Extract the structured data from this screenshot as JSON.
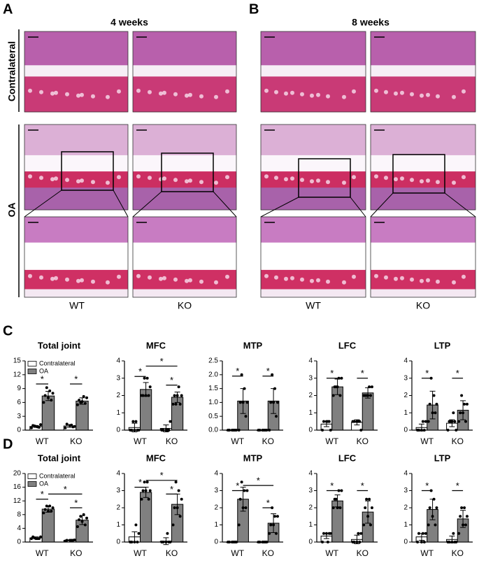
{
  "figure": {
    "panel_labels": [
      "A",
      "B",
      "C",
      "D"
    ],
    "columns": [
      "4 weeks",
      "8 weeks"
    ],
    "rows": [
      "Contralateral",
      "OA"
    ],
    "genotypes": [
      "WT",
      "KO",
      "WT",
      "KO"
    ]
  },
  "chart_data": [
    {
      "type": "bar",
      "title": "Total joint",
      "categories": [
        "WT",
        "KO"
      ],
      "ylim": [
        0,
        15
      ],
      "yticks": [
        0,
        3,
        6,
        9,
        12,
        15
      ],
      "legend": "upper left",
      "series": [
        {
          "name": "Contralateral",
          "color": "#ffffff",
          "values": [
            0.8,
            0.9
          ],
          "errors": [
            0.2,
            0.3
          ],
          "points": [
            [
              0.5,
              0.6,
              0.8,
              1,
              1.2,
              0.7,
              0.9
            ],
            [
              0.5,
              0.7,
              1,
              1.3,
              0.8,
              1.1
            ]
          ]
        },
        {
          "name": "OA",
          "color": "#808080",
          "values": [
            7.4,
            6.3
          ],
          "errors": [
            1.0,
            0.7
          ],
          "points": [
            [
              6,
              6.5,
              7,
              7.5,
              8,
              8.5,
              9.2
            ],
            [
              5.5,
              5.8,
              6.2,
              6.5,
              7,
              7.3,
              6
            ]
          ]
        }
      ],
      "brackets": [
        {
          "from": 0,
          "to": 1,
          "y": 10,
          "label": "*"
        },
        {
          "from": 2,
          "to": 3,
          "y": 10,
          "label": "*"
        }
      ]
    },
    {
      "type": "bar",
      "title": "MFC",
      "categories": [
        "WT",
        "KO"
      ],
      "ylim": [
        0,
        4
      ],
      "yticks": [
        0,
        1,
        2,
        3,
        4
      ],
      "series": [
        {
          "color": "#ffffff",
          "values": [
            0.15,
            0.1
          ],
          "errors": [
            0.25,
            0.2
          ],
          "points": [
            [
              0,
              0,
              0,
              0,
              0,
              0.5,
              0.5
            ],
            [
              0,
              0,
              0,
              0,
              0.5,
              0
            ]
          ]
        },
        {
          "color": "#808080",
          "values": [
            2.35,
            1.9
          ],
          "errors": [
            0.4,
            0.3
          ],
          "points": [
            [
              2,
              2,
              2,
              2,
              2.5,
              3,
              3
            ],
            [
              1.5,
              1.5,
              2,
              2,
              2,
              2.5,
              1.5
            ]
          ]
        }
      ],
      "brackets": [
        {
          "from": 0,
          "to": 1,
          "y": 3.1,
          "label": "*"
        },
        {
          "from": 2,
          "to": 3,
          "y": 2.6,
          "label": "*"
        },
        {
          "from": 1,
          "to": 3,
          "y": 3.7,
          "label": "*"
        }
      ]
    },
    {
      "type": "bar",
      "title": "MTP",
      "categories": [
        "WT",
        "KO"
      ],
      "ylim": [
        0,
        2.5
      ],
      "yticks": [
        {
          "value": 0,
          "label": "0.0"
        },
        0.5,
        {
          "value": 1,
          "label": "1.0"
        },
        1.5,
        {
          "value": 2,
          "label": "2.0"
        },
        2.5
      ],
      "series": [
        {
          "color": "#ffffff",
          "values": [
            0,
            0
          ],
          "errors": [
            0,
            0
          ],
          "points": [
            [
              0,
              0,
              0,
              0,
              0,
              0
            ],
            [
              0,
              0,
              0,
              0,
              0,
              0
            ]
          ]
        },
        {
          "color": "#808080",
          "values": [
            1.05,
            1.05
          ],
          "errors": [
            0.45,
            0.45
          ],
          "points": [
            [
              0,
              0.5,
              1,
              1,
              1,
              1.5,
              2
            ],
            [
              0,
              0.5,
              1,
              1,
              1,
              1.5,
              2
            ]
          ]
        }
      ],
      "brackets": [
        {
          "from": 0,
          "to": 1,
          "y": 1.95,
          "label": "*"
        },
        {
          "from": 2,
          "to": 3,
          "y": 1.95,
          "label": "*"
        }
      ]
    },
    {
      "type": "bar",
      "title": "LFC",
      "categories": [
        "WT",
        "KO"
      ],
      "ylim": [
        0,
        4
      ],
      "yticks": [
        0,
        1,
        2,
        3,
        4
      ],
      "series": [
        {
          "color": "#ffffff",
          "values": [
            0.35,
            0.45
          ],
          "errors": [
            0.15,
            0.15
          ],
          "points": [
            [
              0,
              0.5,
              0.5,
              0.5,
              0,
              0.5
            ],
            [
              0.5,
              0.5,
              0.5,
              0.5,
              0,
              0.5
            ]
          ]
        },
        {
          "color": "#808080",
          "values": [
            2.5,
            2.15
          ],
          "errors": [
            0.45,
            0.3
          ],
          "points": [
            [
              2,
              2,
              2.5,
              2.5,
              3,
              3,
              2.5
            ],
            [
              2,
              2,
              2,
              2,
              2.5,
              2.5,
              2
            ]
          ]
        }
      ],
      "brackets": [
        {
          "from": 0,
          "to": 1,
          "y": 3,
          "label": "*"
        },
        {
          "from": 2,
          "to": 3,
          "y": 3,
          "label": "*"
        }
      ]
    },
    {
      "type": "bar",
      "title": "LTP",
      "categories": [
        "WT",
        "KO"
      ],
      "ylim": [
        0,
        4
      ],
      "yticks": [
        0,
        1,
        2,
        3,
        4
      ],
      "series": [
        {
          "color": "#ffffff",
          "values": [
            0.15,
            0.4
          ],
          "errors": [
            0.2,
            0.2
          ],
          "points": [
            [
              0,
              0,
              0,
              0,
              0.5,
              0.5
            ],
            [
              0,
              0.5,
              0.5,
              0.5,
              0,
              1,
              0.5
            ]
          ]
        },
        {
          "color": "#808080",
          "values": [
            1.45,
            1.15
          ],
          "errors": [
            0.8,
            0.55
          ],
          "points": [
            [
              0.5,
              1,
              1,
              1.5,
              1.5,
              2,
              3
            ],
            [
              0.5,
              0.5,
              1,
              1,
              1.5,
              1.5,
              2
            ]
          ]
        }
      ],
      "brackets": [
        {
          "from": 0,
          "to": 1,
          "y": 3,
          "label": "*"
        },
        {
          "from": 2,
          "to": 3,
          "y": 3,
          "label": "*"
        }
      ]
    },
    {
      "type": "bar",
      "title": "Total joint",
      "categories": [
        "WT",
        "KO"
      ],
      "ylim": [
        0,
        20
      ],
      "yticks": [
        0,
        4,
        8,
        12,
        16,
        20
      ],
      "legend": "upper left",
      "series": [
        {
          "name": "Contralateral",
          "color": "#ffffff",
          "values": [
            1.2,
            0.5
          ],
          "errors": [
            0.3,
            0.1
          ],
          "points": [
            [
              1,
              1,
              1,
              1.5,
              1.5,
              1,
              1.2
            ],
            [
              0.3,
              0.5,
              0.5,
              0.5,
              0.6,
              0.5
            ]
          ]
        },
        {
          "name": "OA",
          "color": "#808080",
          "values": [
            9.6,
            6.4
          ],
          "errors": [
            0.9,
            1.3
          ],
          "points": [
            [
              8.5,
              9,
              9,
              9.5,
              10,
              10.5,
              10.5
            ],
            [
              4.5,
              5,
              6,
              6.5,
              7,
              8,
              7.5
            ]
          ]
        }
      ],
      "brackets": [
        {
          "from": 0,
          "to": 1,
          "y": 12.5,
          "label": "*"
        },
        {
          "from": 2,
          "to": 3,
          "y": 10,
          "label": "*"
        },
        {
          "from": 1,
          "to": 3,
          "y": 14,
          "label": "*"
        }
      ]
    },
    {
      "type": "bar",
      "title": "MFC",
      "categories": [
        "WT",
        "KO"
      ],
      "ylim": [
        0,
        4
      ],
      "yticks": [
        0,
        1,
        2,
        3,
        4
      ],
      "series": [
        {
          "color": "#ffffff",
          "values": [
            0.3,
            0.05
          ],
          "errors": [
            0.3,
            0.2
          ],
          "points": [
            [
              0,
              0,
              0,
              0,
              0.5,
              1
            ],
            [
              0,
              0,
              0,
              0,
              0,
              0.5
            ]
          ]
        },
        {
          "color": "#808080",
          "values": [
            2.9,
            2.2
          ],
          "errors": [
            0.3,
            0.6
          ],
          "points": [
            [
              2.5,
              2.5,
              3,
              3,
              3,
              3.5,
              3.5
            ],
            [
              1,
              1.5,
              2,
              2,
              2.5,
              3,
              3.5
            ]
          ]
        }
      ],
      "brackets": [
        {
          "from": 0,
          "to": 1,
          "y": 3.2,
          "label": "*"
        },
        {
          "from": 2,
          "to": 3,
          "y": 2.8,
          "label": "*"
        },
        {
          "from": 1,
          "to": 3,
          "y": 3.6,
          "label": "*"
        }
      ]
    },
    {
      "type": "bar",
      "title": "MTP",
      "categories": [
        "WT",
        "KO"
      ],
      "ylim": [
        0,
        4
      ],
      "yticks": [
        0,
        1,
        2,
        3,
        4
      ],
      "series": [
        {
          "color": "#ffffff",
          "values": [
            0,
            0
          ],
          "errors": [
            0,
            0
          ],
          "points": [
            [
              0,
              0,
              0,
              0,
              0,
              0
            ],
            [
              0,
              0,
              0,
              0,
              0,
              0
            ]
          ]
        },
        {
          "color": "#808080",
          "values": [
            2.5,
            1.1
          ],
          "errors": [
            0.7,
            0.55
          ],
          "points": [
            [
              1,
              2,
              2,
              2.5,
              3,
              3,
              3.5
            ],
            [
              0.5,
              0.5,
              1,
              1,
              1.5,
              1.5,
              2
            ]
          ]
        }
      ],
      "brackets": [
        {
          "from": 0,
          "to": 1,
          "y": 3,
          "label": "*"
        },
        {
          "from": 2,
          "to": 3,
          "y": 2,
          "label": "*"
        },
        {
          "from": 1,
          "to": 3,
          "y": 3.3,
          "label": "*"
        }
      ]
    },
    {
      "type": "bar",
      "title": "LFC",
      "categories": [
        "WT",
        "KO"
      ],
      "ylim": [
        0,
        4
      ],
      "yticks": [
        0,
        1,
        2,
        3,
        4
      ],
      "series": [
        {
          "color": "#ffffff",
          "values": [
            0.35,
            0.15
          ],
          "errors": [
            0.15,
            0.25
          ],
          "points": [
            [
              0,
              0.5,
              0.5,
              0.5,
              0.5,
              0
            ],
            [
              0,
              0,
              0,
              0,
              0.5,
              0.5
            ]
          ]
        },
        {
          "color": "#808080",
          "values": [
            2.4,
            1.75
          ],
          "errors": [
            0.35,
            0.65
          ],
          "points": [
            [
              2,
              2,
              2,
              2.5,
              3,
              3,
              2.5
            ],
            [
              1,
              1,
              1.5,
              2,
              2,
              2.5,
              2.5
            ]
          ]
        }
      ],
      "brackets": [
        {
          "from": 0,
          "to": 1,
          "y": 3,
          "label": "*"
        },
        {
          "from": 2,
          "to": 3,
          "y": 3,
          "label": "*"
        }
      ]
    },
    {
      "type": "bar",
      "title": "LTP",
      "categories": [
        "WT",
        "KO"
      ],
      "ylim": [
        0,
        4
      ],
      "yticks": [
        0,
        1,
        2,
        3,
        4
      ],
      "series": [
        {
          "color": "#ffffff",
          "values": [
            0.3,
            0.15
          ],
          "errors": [
            0.2,
            0.2
          ],
          "points": [
            [
              0,
              0,
              0,
              0.5,
              0.5,
              0.5
            ],
            [
              0,
              0,
              0,
              0,
              0,
              0.5
            ]
          ]
        },
        {
          "color": "#808080",
          "values": [
            1.9,
            1.35
          ],
          "errors": [
            0.6,
            0.5
          ],
          "points": [
            [
              1,
              1,
              1.5,
              2,
              2,
              2.5,
              3
            ],
            [
              0.5,
              1,
              1,
              1.5,
              1.5,
              2,
              2
            ]
          ]
        }
      ],
      "brackets": [
        {
          "from": 0,
          "to": 1,
          "y": 3,
          "label": "*"
        },
        {
          "from": 2,
          "to": 3,
          "y": 3,
          "label": "*"
        }
      ]
    }
  ]
}
